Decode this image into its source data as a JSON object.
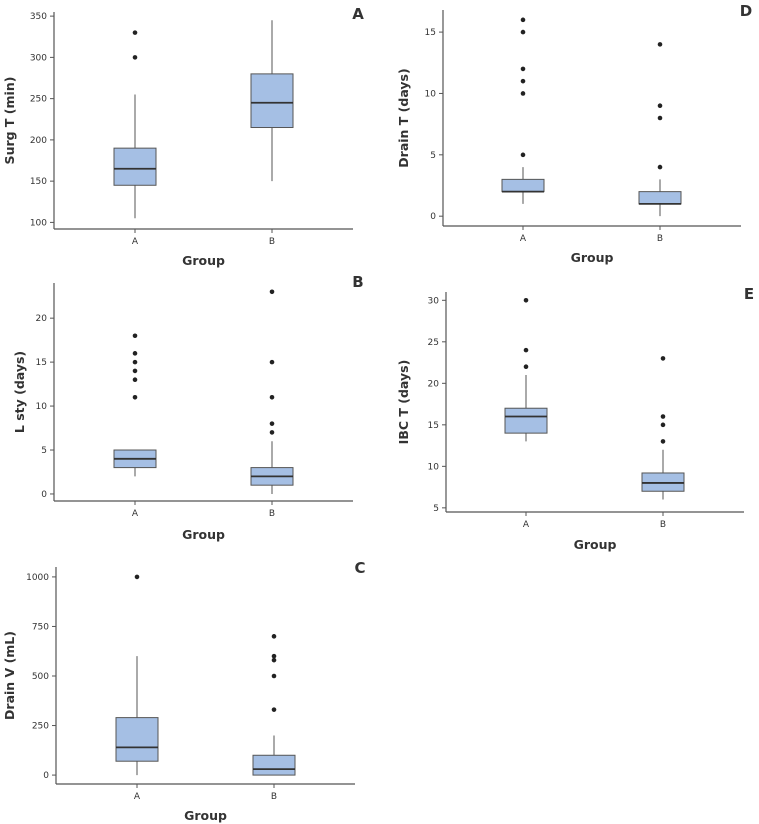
{
  "chart_data": [
    {
      "id": "A",
      "type": "box",
      "panel_label": "A",
      "ylabel": "Surg T (min)",
      "xlabel": "Group",
      "categories": [
        "A",
        "B"
      ],
      "yticks": [
        100,
        150,
        200,
        250,
        300,
        350
      ],
      "ylim": [
        92,
        355
      ],
      "boxes": [
        {
          "group": "A",
          "whisker_low": 105,
          "q1": 145,
          "median": 165,
          "q3": 190,
          "whisker_high": 255,
          "outliers": [
            300,
            330
          ]
        },
        {
          "group": "B",
          "whisker_low": 150,
          "q1": 215,
          "median": 245,
          "q3": 280,
          "whisker_high": 345,
          "outliers": []
        }
      ]
    },
    {
      "id": "B",
      "type": "box",
      "panel_label": "B",
      "ylabel": "L sty (days)",
      "xlabel": "Group",
      "categories": [
        "A",
        "B"
      ],
      "yticks": [
        0,
        5,
        10,
        15,
        20
      ],
      "ylim": [
        -0.8,
        24
      ],
      "boxes": [
        {
          "group": "A",
          "whisker_low": 2,
          "q1": 3,
          "median": 4,
          "q3": 5,
          "whisker_high": 5,
          "outliers": [
            11,
            13,
            14,
            15,
            16,
            18
          ]
        },
        {
          "group": "B",
          "whisker_low": 0,
          "q1": 1,
          "median": 2,
          "q3": 3,
          "whisker_high": 6,
          "outliers": [
            7,
            8,
            11,
            15,
            23
          ]
        }
      ]
    },
    {
      "id": "C",
      "type": "box",
      "panel_label": "C",
      "ylabel": "Drain V (mL)",
      "xlabel": "Group",
      "categories": [
        "A",
        "B"
      ],
      "yticks": [
        0,
        250,
        500,
        750,
        1000
      ],
      "ylim": [
        -45,
        1050
      ],
      "boxes": [
        {
          "group": "A",
          "whisker_low": 0,
          "q1": 70,
          "median": 140,
          "q3": 290,
          "whisker_high": 600,
          "outliers": [
            1000
          ]
        },
        {
          "group": "B",
          "whisker_low": 0,
          "q1": 0,
          "median": 30,
          "q3": 100,
          "whisker_high": 200,
          "outliers": [
            330,
            500,
            580,
            600,
            700
          ]
        }
      ]
    },
    {
      "id": "D",
      "type": "box",
      "panel_label": "D",
      "ylabel": "Drain T (days)",
      "xlabel": "Group",
      "categories": [
        "A",
        "B"
      ],
      "yticks": [
        0,
        5,
        10,
        15
      ],
      "ylim": [
        -0.8,
        16.8
      ],
      "boxes": [
        {
          "group": "A",
          "whisker_low": 1,
          "q1": 2,
          "median": 2,
          "q3": 3,
          "whisker_high": 4,
          "outliers": [
            5,
            10,
            11,
            12,
            15,
            16
          ]
        },
        {
          "group": "B",
          "whisker_low": 0,
          "q1": 1,
          "median": 1,
          "q3": 2,
          "whisker_high": 3,
          "outliers": [
            4,
            8,
            9,
            14
          ]
        }
      ]
    },
    {
      "id": "E",
      "type": "box",
      "panel_label": "E",
      "ylabel": "IBC T (days)",
      "xlabel": "Group",
      "categories": [
        "A",
        "B"
      ],
      "yticks": [
        5,
        10,
        15,
        20,
        25,
        30
      ],
      "ylim": [
        4.5,
        31
      ],
      "boxes": [
        {
          "group": "A",
          "whisker_low": 13,
          "q1": 14,
          "median": 16,
          "q3": 17,
          "whisker_high": 21,
          "outliers": [
            22,
            24,
            30
          ]
        },
        {
          "group": "B",
          "whisker_low": 6,
          "q1": 7,
          "median": 8,
          "q3": 9.2,
          "whisker_high": 12,
          "outliers": [
            13,
            15,
            16,
            23
          ]
        }
      ]
    }
  ]
}
